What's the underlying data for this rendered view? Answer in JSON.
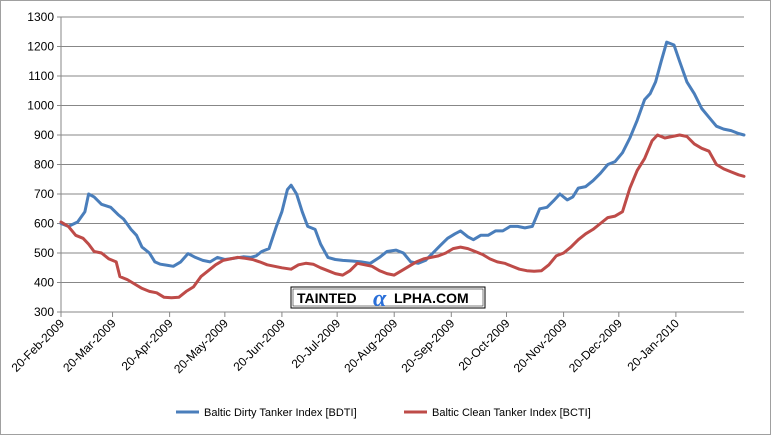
{
  "chart_data": {
    "type": "line",
    "title": "",
    "xlabel": "",
    "ylabel": "",
    "ylim": [
      300,
      1300
    ],
    "y_ticks": [
      300,
      400,
      500,
      600,
      700,
      800,
      900,
      1000,
      1100,
      1200,
      1300
    ],
    "x_ticks": [
      "20-Feb-2009",
      "20-Mar-2009",
      "20-Apr-2009",
      "20-May-2009",
      "20-Jun-2009",
      "20-Jul-2009",
      "20-Aug-2009",
      "20-Sep-2009",
      "20-Oct-2009",
      "20-Nov-2009",
      "20-Dec-2009",
      "20-Jan-2010"
    ],
    "x_range": [
      "2009-02-20",
      "2010-02-26"
    ],
    "grid": "horizontal",
    "legend_position": "bottom",
    "series": [
      {
        "name": "Baltic Dirty Tanker Index [BDTI]",
        "color": "#4a7ebb",
        "points": [
          [
            "2009-02-20",
            600
          ],
          [
            "2009-02-24",
            590
          ],
          [
            "2009-03-01",
            605
          ],
          [
            "2009-03-05",
            640
          ],
          [
            "2009-03-07",
            700
          ],
          [
            "2009-03-10",
            690
          ],
          [
            "2009-03-14",
            665
          ],
          [
            "2009-03-19",
            655
          ],
          [
            "2009-03-23",
            630
          ],
          [
            "2009-03-26",
            615
          ],
          [
            "2009-03-30",
            580
          ],
          [
            "2009-04-02",
            560
          ],
          [
            "2009-04-05",
            520
          ],
          [
            "2009-04-09",
            500
          ],
          [
            "2009-04-12",
            470
          ],
          [
            "2009-04-15",
            462
          ],
          [
            "2009-04-19",
            458
          ],
          [
            "2009-04-22",
            455
          ],
          [
            "2009-04-26",
            470
          ],
          [
            "2009-04-30",
            498
          ],
          [
            "2009-05-04",
            485
          ],
          [
            "2009-05-08",
            475
          ],
          [
            "2009-05-12",
            470
          ],
          [
            "2009-05-16",
            485
          ],
          [
            "2009-05-20",
            478
          ],
          [
            "2009-05-25",
            482
          ],
          [
            "2009-05-30",
            487
          ],
          [
            "2009-06-03",
            485
          ],
          [
            "2009-06-06",
            490
          ],
          [
            "2009-06-09",
            505
          ],
          [
            "2009-06-13",
            515
          ],
          [
            "2009-06-17",
            590
          ],
          [
            "2009-06-20",
            640
          ],
          [
            "2009-06-23",
            715
          ],
          [
            "2009-06-25",
            730
          ],
          [
            "2009-06-28",
            700
          ],
          [
            "2009-07-01",
            640
          ],
          [
            "2009-07-04",
            590
          ],
          [
            "2009-07-08",
            580
          ],
          [
            "2009-07-11",
            530
          ],
          [
            "2009-07-15",
            485
          ],
          [
            "2009-07-19",
            478
          ],
          [
            "2009-07-23",
            475
          ],
          [
            "2009-07-28",
            473
          ],
          [
            "2009-08-02",
            470
          ],
          [
            "2009-08-07",
            465
          ],
          [
            "2009-08-12",
            485
          ],
          [
            "2009-08-16",
            505
          ],
          [
            "2009-08-21",
            510
          ],
          [
            "2009-08-25",
            500
          ],
          [
            "2009-08-29",
            470
          ],
          [
            "2009-09-02",
            465
          ],
          [
            "2009-09-06",
            475
          ],
          [
            "2009-09-10",
            500
          ],
          [
            "2009-09-14",
            525
          ],
          [
            "2009-09-18",
            550
          ],
          [
            "2009-09-22",
            565
          ],
          [
            "2009-09-25",
            575
          ],
          [
            "2009-09-29",
            555
          ],
          [
            "2009-10-02",
            545
          ],
          [
            "2009-10-06",
            560
          ],
          [
            "2009-10-10",
            560
          ],
          [
            "2009-10-14",
            575
          ],
          [
            "2009-10-18",
            575
          ],
          [
            "2009-10-22",
            590
          ],
          [
            "2009-10-26",
            590
          ],
          [
            "2009-10-30",
            585
          ],
          [
            "2009-11-03",
            590
          ],
          [
            "2009-11-07",
            650
          ],
          [
            "2009-11-11",
            655
          ],
          [
            "2009-11-15",
            680
          ],
          [
            "2009-11-18",
            700
          ],
          [
            "2009-11-22",
            680
          ],
          [
            "2009-11-25",
            690
          ],
          [
            "2009-11-28",
            720
          ],
          [
            "2009-12-02",
            725
          ],
          [
            "2009-12-06",
            745
          ],
          [
            "2009-12-10",
            770
          ],
          [
            "2009-12-14",
            800
          ],
          [
            "2009-12-18",
            810
          ],
          [
            "2009-12-22",
            840
          ],
          [
            "2009-12-26",
            890
          ],
          [
            "2009-12-30",
            950
          ],
          [
            "2010-01-03",
            1020
          ],
          [
            "2010-01-06",
            1040
          ],
          [
            "2010-01-09",
            1080
          ],
          [
            "2010-01-12",
            1150
          ],
          [
            "2010-01-15",
            1215
          ],
          [
            "2010-01-19",
            1205
          ],
          [
            "2010-01-22",
            1150
          ],
          [
            "2010-01-26",
            1080
          ],
          [
            "2010-01-30",
            1040
          ],
          [
            "2010-02-03",
            990
          ],
          [
            "2010-02-07",
            960
          ],
          [
            "2010-02-11",
            930
          ],
          [
            "2010-02-15",
            920
          ],
          [
            "2010-02-19",
            915
          ],
          [
            "2010-02-23",
            905
          ],
          [
            "2010-02-26",
            900
          ]
        ]
      },
      {
        "name": "Baltic Clean Tanker Index [BCTI]",
        "color": "#be4b48",
        "points": [
          [
            "2009-02-20",
            605
          ],
          [
            "2009-02-24",
            590
          ],
          [
            "2009-02-28",
            560
          ],
          [
            "2009-03-04",
            550
          ],
          [
            "2009-03-07",
            530
          ],
          [
            "2009-03-10",
            505
          ],
          [
            "2009-03-14",
            500
          ],
          [
            "2009-03-18",
            480
          ],
          [
            "2009-03-22",
            470
          ],
          [
            "2009-03-24",
            420
          ],
          [
            "2009-03-28",
            410
          ],
          [
            "2009-04-01",
            395
          ],
          [
            "2009-04-05",
            380
          ],
          [
            "2009-04-09",
            370
          ],
          [
            "2009-04-13",
            365
          ],
          [
            "2009-04-17",
            350
          ],
          [
            "2009-04-21",
            348
          ],
          [
            "2009-04-25",
            350
          ],
          [
            "2009-04-29",
            370
          ],
          [
            "2009-05-03",
            385
          ],
          [
            "2009-05-07",
            420
          ],
          [
            "2009-05-11",
            440
          ],
          [
            "2009-05-15",
            460
          ],
          [
            "2009-05-19",
            475
          ],
          [
            "2009-05-23",
            480
          ],
          [
            "2009-05-27",
            485
          ],
          [
            "2009-05-31",
            482
          ],
          [
            "2009-06-04",
            478
          ],
          [
            "2009-06-08",
            470
          ],
          [
            "2009-06-12",
            460
          ],
          [
            "2009-06-16",
            455
          ],
          [
            "2009-06-20",
            450
          ],
          [
            "2009-06-25",
            445
          ],
          [
            "2009-06-29",
            460
          ],
          [
            "2009-07-03",
            465
          ],
          [
            "2009-07-07",
            462
          ],
          [
            "2009-07-11",
            450
          ],
          [
            "2009-07-15",
            440
          ],
          [
            "2009-07-19",
            430
          ],
          [
            "2009-07-23",
            425
          ],
          [
            "2009-07-27",
            440
          ],
          [
            "2009-07-31",
            465
          ],
          [
            "2009-08-04",
            460
          ],
          [
            "2009-08-08",
            455
          ],
          [
            "2009-08-12",
            440
          ],
          [
            "2009-08-16",
            430
          ],
          [
            "2009-08-20",
            425
          ],
          [
            "2009-08-24",
            440
          ],
          [
            "2009-08-28",
            455
          ],
          [
            "2009-09-01",
            470
          ],
          [
            "2009-09-05",
            480
          ],
          [
            "2009-09-09",
            485
          ],
          [
            "2009-09-13",
            490
          ],
          [
            "2009-09-17",
            500
          ],
          [
            "2009-09-21",
            515
          ],
          [
            "2009-09-25",
            520
          ],
          [
            "2009-09-29",
            515
          ],
          [
            "2009-10-03",
            505
          ],
          [
            "2009-10-07",
            495
          ],
          [
            "2009-10-11",
            480
          ],
          [
            "2009-10-15",
            470
          ],
          [
            "2009-10-19",
            465
          ],
          [
            "2009-10-23",
            455
          ],
          [
            "2009-10-27",
            445
          ],
          [
            "2009-10-31",
            440
          ],
          [
            "2009-11-04",
            438
          ],
          [
            "2009-11-08",
            440
          ],
          [
            "2009-11-12",
            460
          ],
          [
            "2009-11-16",
            490
          ],
          [
            "2009-11-20",
            500
          ],
          [
            "2009-11-24",
            520
          ],
          [
            "2009-11-28",
            545
          ],
          [
            "2009-12-02",
            565
          ],
          [
            "2009-12-06",
            580
          ],
          [
            "2009-12-10",
            600
          ],
          [
            "2009-12-14",
            620
          ],
          [
            "2009-12-18",
            625
          ],
          [
            "2009-12-22",
            640
          ],
          [
            "2009-12-26",
            720
          ],
          [
            "2009-12-30",
            780
          ],
          [
            "2010-01-03",
            820
          ],
          [
            "2010-01-07",
            880
          ],
          [
            "2010-01-10",
            900
          ],
          [
            "2010-01-14",
            890
          ],
          [
            "2010-01-18",
            895
          ],
          [
            "2010-01-22",
            900
          ],
          [
            "2010-01-26",
            895
          ],
          [
            "2010-01-30",
            870
          ],
          [
            "2010-02-03",
            855
          ],
          [
            "2010-02-07",
            845
          ],
          [
            "2010-02-11",
            800
          ],
          [
            "2010-02-15",
            785
          ],
          [
            "2010-02-19",
            775
          ],
          [
            "2010-02-23",
            765
          ],
          [
            "2010-02-26",
            760
          ]
        ]
      }
    ]
  },
  "watermark": {
    "text_before": "TAINTED",
    "alpha_glyph": "α",
    "text_after": "LPHA.COM"
  }
}
